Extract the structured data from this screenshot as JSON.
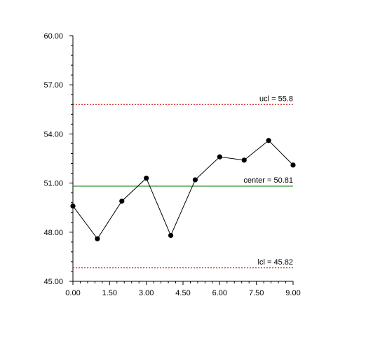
{
  "chart_data": {
    "type": "line",
    "title": "",
    "xlabel": "",
    "ylabel": "",
    "xlim": [
      0,
      9
    ],
    "ylim": [
      45,
      60
    ],
    "x_ticks": [
      "0.00",
      "1.50",
      "3.00",
      "4.50",
      "6.00",
      "7.50",
      "9.00"
    ],
    "y_ticks": [
      "45.00",
      "48.00",
      "51.00",
      "54.00",
      "57.00",
      "60.00"
    ],
    "series": [
      {
        "x": [
          0,
          1,
          2,
          3,
          4,
          5,
          6,
          7,
          8,
          9
        ],
        "values": [
          49.6,
          47.6,
          49.9,
          51.3,
          47.8,
          51.2,
          52.6,
          52.4,
          53.6,
          52.1
        ],
        "color": "#000000"
      }
    ],
    "reference_lines": [
      {
        "label": "ucl = 55.8",
        "value": 55.8,
        "color": "#cc0000",
        "style": "dotted"
      },
      {
        "label": "center = 50.81",
        "value": 50.81,
        "color": "#007700",
        "style": "solid"
      },
      {
        "label": "lcl = 45.82",
        "value": 45.82,
        "color": "#cc0000",
        "style": "dotted"
      }
    ],
    "grid": false,
    "legend": "none"
  }
}
